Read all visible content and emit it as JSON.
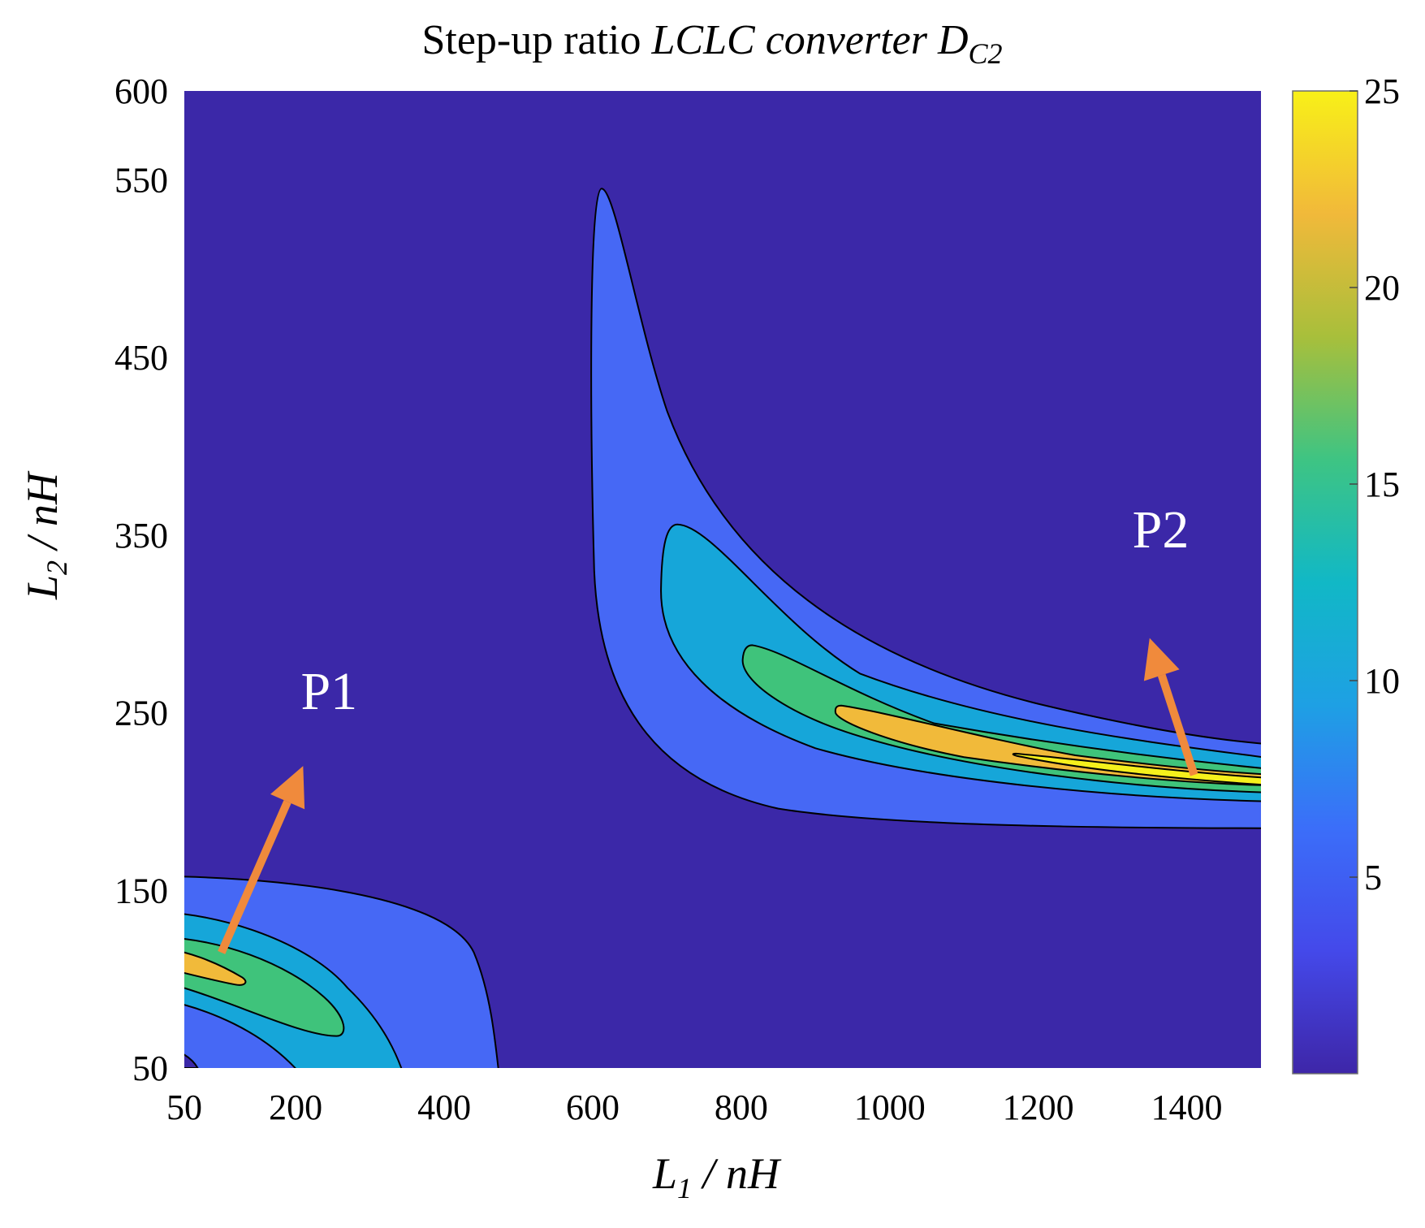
{
  "chart_data": {
    "type": "contour",
    "title": {
      "prefix": "Step-up ratio ",
      "italic": "LCLC converter D",
      "subscript": "C2"
    },
    "xlabel": {
      "main": "L",
      "sub": "1",
      "unit": " / nH"
    },
    "ylabel": {
      "main": "L",
      "sub": "2",
      "unit": " / nH"
    },
    "xlim": [
      50,
      1500
    ],
    "ylim": [
      50,
      600
    ],
    "xticks": [
      50,
      200,
      400,
      600,
      800,
      1000,
      1200,
      1400
    ],
    "yticks": [
      50,
      150,
      250,
      350,
      450,
      550,
      600
    ],
    "colorbar": {
      "range": [
        0,
        25
      ],
      "ticks": [
        5,
        10,
        15,
        20,
        25
      ]
    },
    "contour_levels": [
      0,
      5,
      10,
      15,
      20,
      25
    ],
    "level_colors": [
      "#3b28a8",
      "#4668f5",
      "#16a6d9",
      "#3fc37b",
      "#f1ba3a",
      "#f5f01c"
    ],
    "colorbar_stops": [
      "#3e26a8",
      "#4449ea",
      "#3b6ef9",
      "#1ea0e4",
      "#11b8c6",
      "#3ec483",
      "#a8bf3b",
      "#f1b93a",
      "#f8f018"
    ],
    "annotations": [
      {
        "text": "P1",
        "label_at": [
          245,
          252
        ],
        "arrow_from": [
          100,
          115
        ],
        "arrow_to": [
          210,
          220
        ],
        "color": "#f08a3c"
      },
      {
        "text": "P2",
        "label_at": [
          1365,
          343
        ],
        "arrow_from": [
          1410,
          215
        ],
        "arrow_to": [
          1350,
          292
        ],
        "color": "#f08a3c"
      }
    ]
  }
}
